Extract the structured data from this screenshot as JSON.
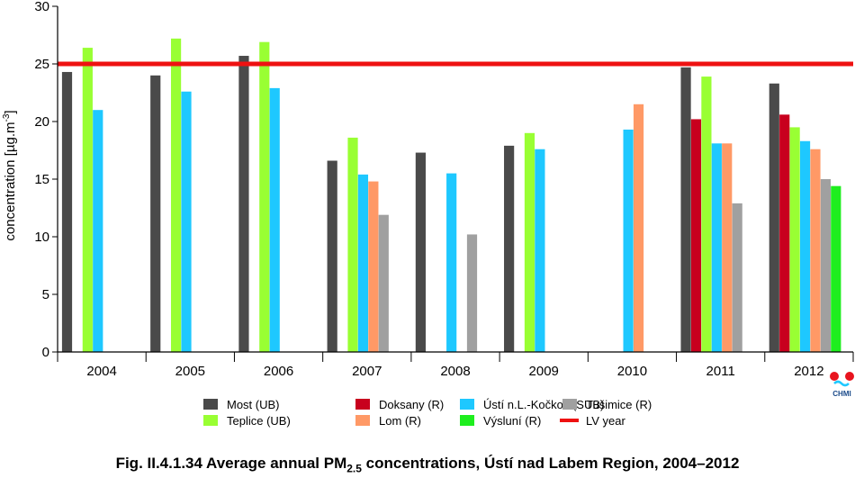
{
  "chart_data": {
    "type": "bar",
    "ylabel_main": "concentration [µg.m",
    "ylabel_sup": "-3",
    "ylabel_end": "]",
    "ylim": [
      0,
      30
    ],
    "yticks": [
      "0",
      "5",
      "10",
      "15",
      "20",
      "25",
      "30"
    ],
    "categories": [
      "2004",
      "2005",
      "2006",
      "2007",
      "2008",
      "2009",
      "2010",
      "2011",
      "2012"
    ],
    "series": [
      {
        "name": "Most (UB)",
        "color": "#4a4a4a",
        "values": [
          24.3,
          24.0,
          25.7,
          16.6,
          17.3,
          17.9,
          null,
          24.7,
          23.3
        ]
      },
      {
        "name": "Doksany (R)",
        "color": "#c8001e",
        "values": [
          null,
          null,
          null,
          null,
          null,
          null,
          null,
          20.2,
          20.6
        ]
      },
      {
        "name": "Teplice (UB)",
        "color": "#99ff33",
        "values": [
          26.4,
          27.2,
          26.9,
          18.6,
          null,
          19.0,
          null,
          23.9,
          19.5
        ]
      },
      {
        "name": "Ústí n.L.-Kočkov (SUB)",
        "color": "#1ec8ff",
        "values": [
          21.0,
          22.6,
          22.9,
          15.4,
          15.5,
          17.6,
          19.3,
          18.1,
          18.3
        ]
      },
      {
        "name": "Lom (R)",
        "color": "#ff9966",
        "values": [
          null,
          null,
          null,
          14.8,
          null,
          null,
          21.5,
          18.1,
          17.6
        ]
      },
      {
        "name": "Tušimice (R)",
        "color": "#a0a0a0",
        "values": [
          null,
          null,
          null,
          11.9,
          10.2,
          null,
          null,
          12.9,
          15.0
        ]
      },
      {
        "name": "Výsluní (R)",
        "color": "#1eee1e",
        "values": [
          null,
          null,
          null,
          null,
          null,
          null,
          null,
          null,
          14.4
        ]
      }
    ],
    "limit_line": {
      "name": "LV year",
      "value": 25,
      "color": "#ee1111"
    },
    "legend": [
      {
        "name": "Most (UB)",
        "color": "#4a4a4a",
        "kind": "box"
      },
      {
        "name": "Teplice (UB)",
        "color": "#99ff33",
        "kind": "box"
      },
      {
        "name": "Doksany (R)",
        "color": "#c8001e",
        "kind": "box"
      },
      {
        "name": "Lom (R)",
        "color": "#ff9966",
        "kind": "box"
      },
      {
        "name": "Ústí n.L.-Kočkov (SUB)",
        "color": "#1ec8ff",
        "kind": "box"
      },
      {
        "name": "Výsluní (R)",
        "color": "#1eee1e",
        "kind": "box"
      },
      {
        "name": "Tušimice (R)",
        "color": "#a0a0a0",
        "kind": "box"
      },
      {
        "name": "LV year",
        "color": "#ee1111",
        "kind": "line"
      }
    ]
  },
  "logo": {
    "text": "CHMI"
  },
  "caption": {
    "prefix": "Fig. II.4.1.34  Average annual PM",
    "sub": "2.5",
    "suffix": " concentrations, Ústí nad Labem Region, 2004–2012"
  }
}
